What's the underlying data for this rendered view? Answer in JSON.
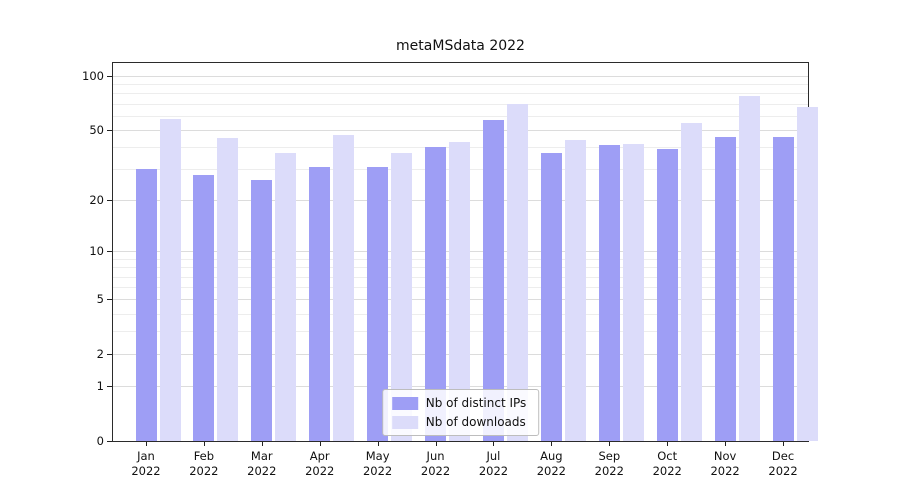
{
  "chart_data": {
    "type": "bar",
    "title": "metaMSdata 2022",
    "categories": [
      "Jan",
      "Feb",
      "Mar",
      "Apr",
      "May",
      "Jun",
      "Jul",
      "Aug",
      "Sep",
      "Oct",
      "Nov",
      "Dec"
    ],
    "year": "2022",
    "series": [
      {
        "name": "Nb of distinct IPs",
        "color": "#9e9ef5",
        "values": [
          30,
          28,
          26,
          31,
          31,
          40,
          57,
          37,
          41,
          39,
          46,
          46
        ]
      },
      {
        "name": "Nb of downloads",
        "color": "#dcdcfa",
        "values": [
          58,
          45,
          37,
          47,
          37,
          43,
          70,
          44,
          42,
          55,
          77,
          67
        ]
      }
    ],
    "yscale": "log1p",
    "yticks": [
      0,
      1,
      2,
      5,
      10,
      20,
      50,
      100
    ],
    "ylim": [
      0,
      118
    ],
    "grid": "y",
    "legend_position": "lower center",
    "axis_color": "#2b2b2b"
  }
}
